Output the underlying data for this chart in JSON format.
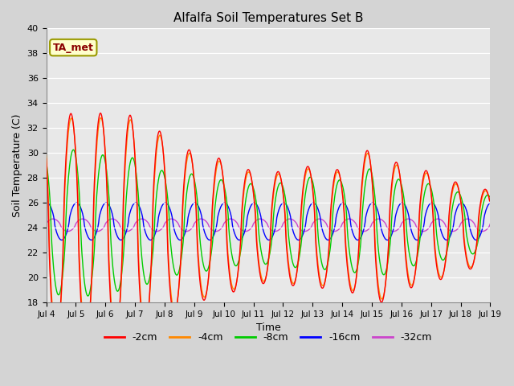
{
  "title": "Alfalfa Soil Temperatures Set B",
  "xlabel": "Time",
  "ylabel": "Soil Temperature (C)",
  "ylim": [
    18,
    40
  ],
  "xlim": [
    0,
    360
  ],
  "colors": {
    "-2cm": "#ff0000",
    "-4cm": "#ff8800",
    "-8cm": "#00cc00",
    "-16cm": "#0000ff",
    "-32cm": "#cc44cc"
  },
  "tick_positions": [
    0,
    24,
    48,
    72,
    96,
    120,
    144,
    168,
    192,
    216,
    240,
    264,
    288,
    312,
    336,
    360
  ],
  "tick_labels": [
    "Jul 4",
    "Jul 5",
    "Jul 6",
    "Jul 7",
    "Jul 8",
    "Jul 9",
    "Jul 10",
    "Jul 11",
    "Jul 12",
    "Jul 13",
    "Jul 14",
    "Jul 15",
    "Jul 16",
    "Jul 17",
    "Jul 18",
    "Jul 19"
  ],
  "legend_label": "TA_met",
  "fig_bg_color": "#d4d4d4",
  "plot_bg_color": "#e8e8e8",
  "yticks": [
    18,
    20,
    22,
    24,
    26,
    28,
    30,
    32,
    34,
    36,
    38,
    40
  ]
}
